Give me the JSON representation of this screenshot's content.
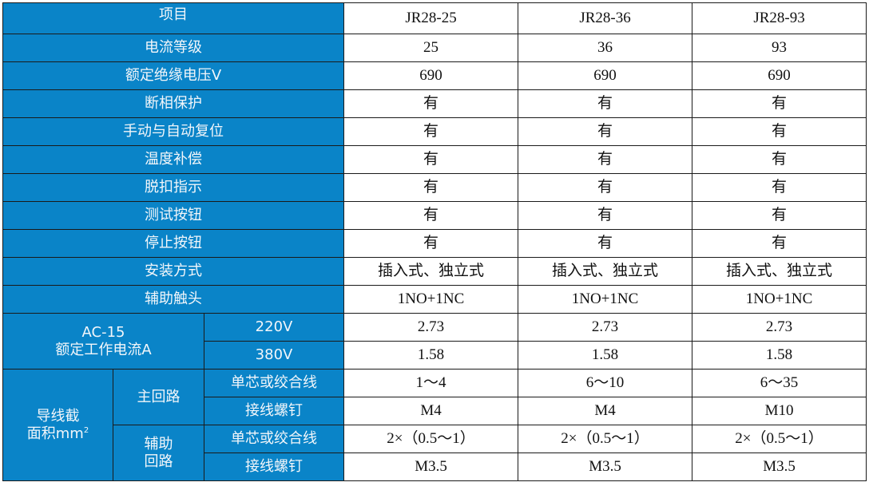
{
  "header": {
    "label": "项目",
    "models": [
      "JR28-25",
      "JR28-36",
      "JR28-93"
    ]
  },
  "rows": [
    {
      "label": "电流等级",
      "values": [
        "25",
        "36",
        "93"
      ]
    },
    {
      "label": "额定绝缘电压V",
      "values": [
        "690",
        "690",
        "690"
      ]
    },
    {
      "label": "断相保护",
      "values": [
        "有",
        "有",
        "有"
      ]
    },
    {
      "label": "手动与自动复位",
      "values": [
        "有",
        "有",
        "有"
      ]
    },
    {
      "label": "温度补偿",
      "values": [
        "有",
        "有",
        "有"
      ]
    },
    {
      "label": "脱扣指示",
      "values": [
        "有",
        "有",
        "有"
      ]
    },
    {
      "label": "测试按钮",
      "values": [
        "有",
        "有",
        "有"
      ]
    },
    {
      "label": "停止按钮",
      "values": [
        "有",
        "有",
        "有"
      ]
    },
    {
      "label": "安装方式",
      "values": [
        "插入式、独立式",
        "插入式、独立式",
        "插入式、独立式"
      ]
    },
    {
      "label": "辅助触头",
      "values": [
        "1NO+1NC",
        "1NO+1NC",
        "1NO+1NC"
      ]
    }
  ],
  "ac15": {
    "label_line1": "AC-15",
    "label_line2": "额定工作电流A",
    "rows": [
      {
        "label": "220V",
        "values": [
          "2.73",
          "2.73",
          "2.73"
        ]
      },
      {
        "label": "380V",
        "values": [
          "1.58",
          "1.58",
          "1.58"
        ]
      }
    ]
  },
  "wire": {
    "label_line1": "导线截",
    "label_line2": "面积mm",
    "label_sup": "2",
    "main": {
      "label": "主回路",
      "rows": [
        {
          "label": "单芯或绞合线",
          "values": [
            "1～4",
            "6～10",
            "6～35"
          ]
        },
        {
          "label": "接线螺钉",
          "values": [
            "M4",
            "M4",
            "M10"
          ]
        }
      ]
    },
    "aux": {
      "label_line1": "辅助",
      "label_line2": "回路",
      "rows": [
        {
          "label": "单芯或绞合线",
          "values": [
            "2×（0.5～1）",
            "2×（0.5～1）",
            "2×（0.5～1）"
          ]
        },
        {
          "label": "接线螺钉",
          "values": [
            "M3.5",
            "M3.5",
            "M3.5"
          ]
        }
      ]
    }
  },
  "colors": {
    "header_bg": "#0a84c8",
    "header_text": "#f2f6fa"
  }
}
